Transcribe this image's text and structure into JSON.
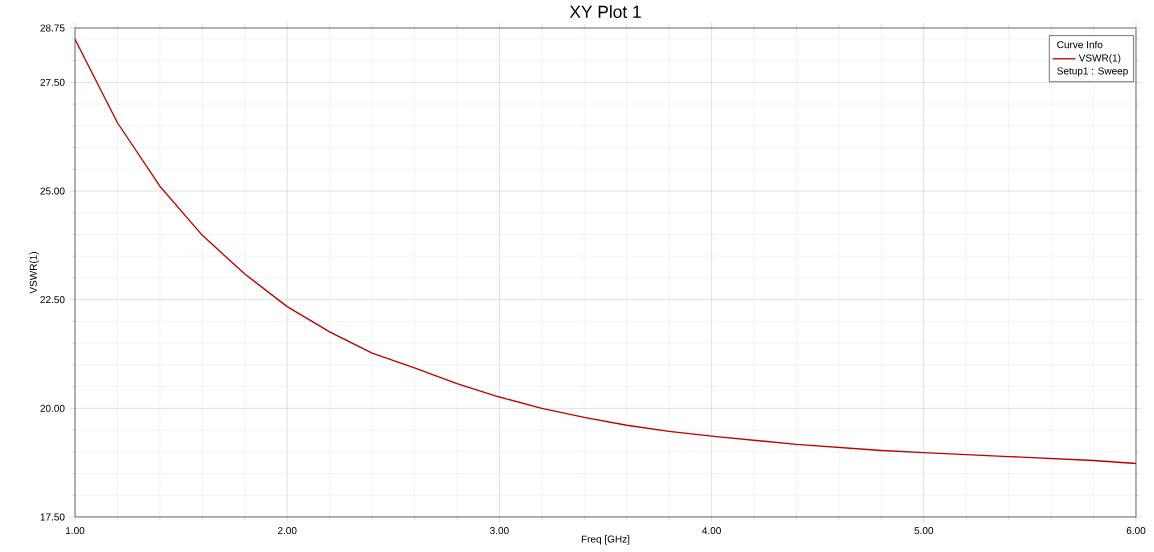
{
  "chart_data": {
    "type": "line",
    "title": "XY Plot 1",
    "xlabel": "Freq [GHz]",
    "ylabel": "VSWR(1)",
    "legend_title": "Curve Info",
    "annotations": [
      "Setup1 : Sweep"
    ],
    "x": [
      1.0,
      1.2,
      1.4,
      1.6,
      1.8,
      2.0,
      2.2,
      2.4,
      2.6,
      2.8,
      3.0,
      3.2,
      3.4,
      3.6,
      3.8,
      4.0,
      4.4,
      4.8,
      5.0,
      5.4,
      5.8,
      6.0
    ],
    "series": [
      {
        "name": "VSWR(1)",
        "color": "#c00000",
        "values": [
          28.49,
          26.57,
          25.11,
          23.98,
          23.09,
          22.34,
          21.76,
          21.27,
          20.93,
          20.57,
          20.26,
          20.0,
          19.79,
          19.61,
          19.47,
          19.36,
          19.17,
          19.03,
          18.98,
          18.89,
          18.8,
          18.73
        ]
      }
    ],
    "xlim": [
      1.0,
      6.0
    ],
    "ylim": [
      17.5,
      28.75
    ],
    "xticks": [
      {
        "value": 1,
        "label": "1.00"
      },
      {
        "value": 2,
        "label": "2.00"
      },
      {
        "value": 3,
        "label": "3.00"
      },
      {
        "value": 4,
        "label": "4.00"
      },
      {
        "value": 5,
        "label": "5.00"
      },
      {
        "value": 6,
        "label": "6.00"
      }
    ],
    "yticks": [
      {
        "value": 17.5,
        "label": "17.50"
      },
      {
        "value": 20,
        "label": "20.00"
      },
      {
        "value": 22.5,
        "label": "22.50"
      },
      {
        "value": 25,
        "label": "25.00"
      },
      {
        "value": 27.5,
        "label": "27.50"
      },
      {
        "value": 28.75,
        "label": "28.75"
      }
    ],
    "grid": true,
    "legend": "top right",
    "marker": "none",
    "line_style": "solid"
  }
}
